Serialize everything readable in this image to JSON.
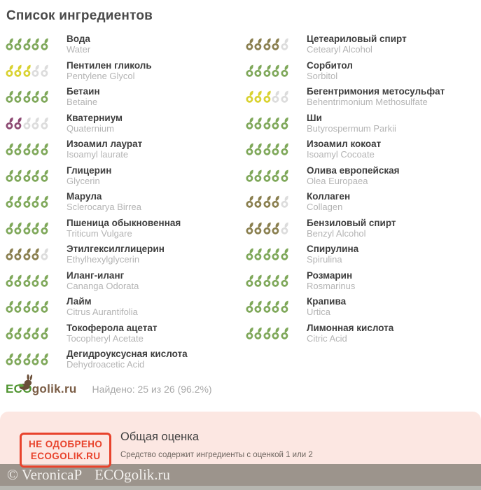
{
  "page": {
    "title": "Список ингредиентов"
  },
  "rating": {
    "max": 5,
    "colors": {
      "2": "#8d4a73",
      "3": "#d9d232",
      "4": "#8a7f4f",
      "5": "#7fa85a"
    },
    "empty_color": "#dcdcdc"
  },
  "ingredients": {
    "left": [
      {
        "name": "Вода",
        "latin": "Water",
        "score": 5
      },
      {
        "name": "Пентилен гликоль",
        "latin": "Pentylene Glycol",
        "score": 3
      },
      {
        "name": "Бетаин",
        "latin": "Betaine",
        "score": 5
      },
      {
        "name": "Кватерниум",
        "latin": "Quaternium",
        "score": 2
      },
      {
        "name": "Изоамил лаурат",
        "latin": "Isoamyl laurate",
        "score": 5
      },
      {
        "name": "Глицерин",
        "latin": "Glycerin",
        "score": 5
      },
      {
        "name": "Марула",
        "latin": "Sclerocarya Birrea",
        "score": 5
      },
      {
        "name": "Пшеница обыкновенная",
        "latin": "Triticum Vulgare",
        "score": 5
      },
      {
        "name": "Этилгексилглицерин",
        "latin": "Ethylhexylglycerin",
        "score": 4
      },
      {
        "name": "Иланг-иланг",
        "latin": "Cananga Odorata",
        "score": 5
      },
      {
        "name": "Лайм",
        "latin": "Citrus Aurantifolia",
        "score": 5
      },
      {
        "name": "Токоферола ацетат",
        "latin": "Tocopheryl Acetate",
        "score": 5
      },
      {
        "name": "Дегидроуксусная кислота",
        "latin": "Dehydroacetic Acid",
        "score": 5
      }
    ],
    "right": [
      {
        "name": "Цетеариловый спирт",
        "latin": "Cetearyl Alcohol",
        "score": 4
      },
      {
        "name": "Сорбитол",
        "latin": "Sorbitol",
        "score": 5
      },
      {
        "name": "Бегентримония метосульфат",
        "latin": "Behentrimonium Methosulfate",
        "score": 3
      },
      {
        "name": "Ши",
        "latin": "Butyrospermum Parkii",
        "score": 5
      },
      {
        "name": "Изоамил кокоат",
        "latin": "Isoamyl Cocoate",
        "score": 5
      },
      {
        "name": "Олива европейская",
        "latin": "Olea Europaea",
        "score": 5
      },
      {
        "name": "Коллаген",
        "latin": "Collagen",
        "score": 4
      },
      {
        "name": "Бензиловый спирт",
        "latin": "Benzyl Alcohol",
        "score": 4
      },
      {
        "name": "Спирулина",
        "latin": "Spirulina",
        "score": 5
      },
      {
        "name": "Розмарин",
        "latin": "Rosmarinus",
        "score": 5
      },
      {
        "name": "Крапива",
        "latin": "Urtica",
        "score": 5
      },
      {
        "name": "Лимонная кислота",
        "latin": "Citric Acid",
        "score": 5
      }
    ]
  },
  "logo": {
    "eco": "ECO",
    "rest": "golik.ru",
    "rabbit_color": "#6b4f38",
    "leaf_color": "#5fa23a",
    "found": "Найдено: 25 из 26 (96.2%)"
  },
  "verdict": {
    "stamp_line1": "НЕ ОДОБРЕНО",
    "stamp_line2": "ECOGOLIK.RU",
    "stamp_color": "#e8432c",
    "title": "Общая оценка",
    "description": "Средство содержит ингредиенты с оценкой 1 или 2",
    "panel_color": "#fce7e2"
  },
  "bottom_bar": {
    "copyright": "© VeronicaP",
    "brand": "ECOgolik.ru"
  }
}
